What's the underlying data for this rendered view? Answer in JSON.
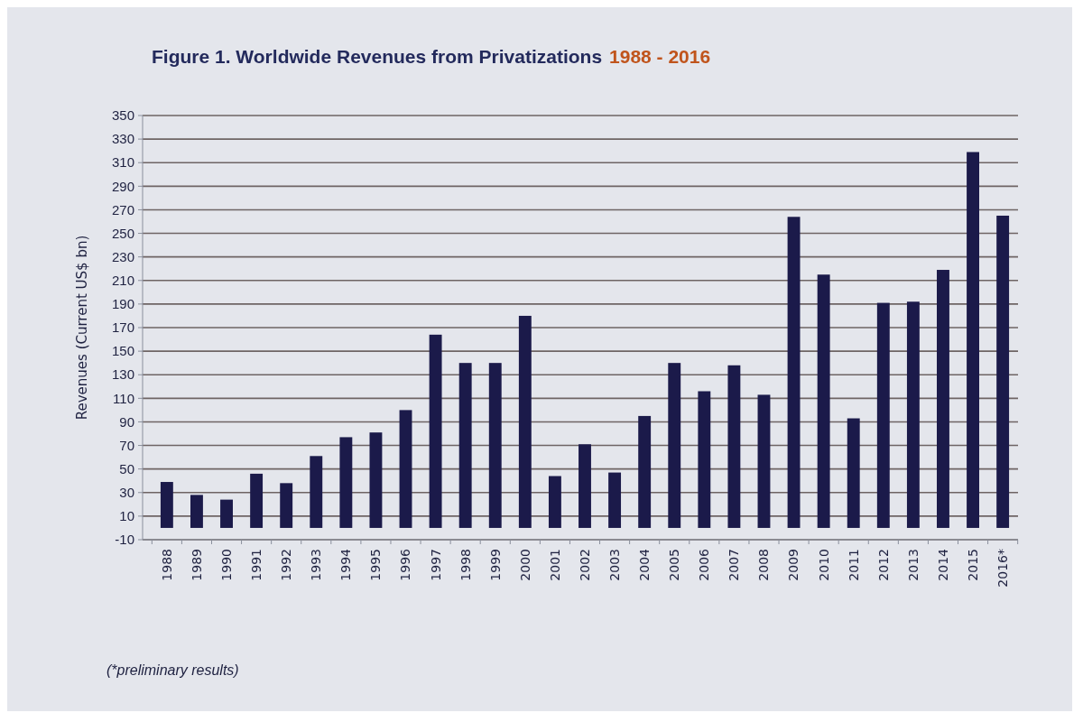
{
  "chart_data": {
    "type": "bar",
    "title": "Figure 1. Worldwide Revenues from Privatizations",
    "subtitle": "1988 - 2016",
    "ylabel": "Revenues (Current US$ bn)",
    "categories": [
      "1988",
      "1989",
      "1990",
      "1991",
      "1992",
      "1993",
      "1994",
      "1995",
      "1996",
      "1997",
      "1998",
      "1999",
      "2000",
      "2001",
      "2002",
      "2003",
      "2004",
      "2005",
      "2006",
      "2007",
      "2008",
      "2009",
      "2010",
      "2011",
      "2012",
      "2013",
      "2014",
      "2015",
      "2016*"
    ],
    "values": [
      39,
      28,
      24,
      46,
      38,
      61,
      77,
      81,
      100,
      164,
      140,
      140,
      180,
      44,
      71,
      47,
      95,
      140,
      116,
      138,
      113,
      264,
      215,
      93,
      191,
      192,
      219,
      319,
      265
    ],
    "color": "#1b1a4a",
    "ylim": [
      -10,
      350
    ],
    "yticks": [
      -10,
      10,
      30,
      50,
      70,
      90,
      110,
      130,
      150,
      170,
      190,
      210,
      230,
      250,
      270,
      290,
      310,
      330,
      350
    ],
    "grid": "y",
    "annotations": [
      "(*preliminary results)"
    ]
  }
}
